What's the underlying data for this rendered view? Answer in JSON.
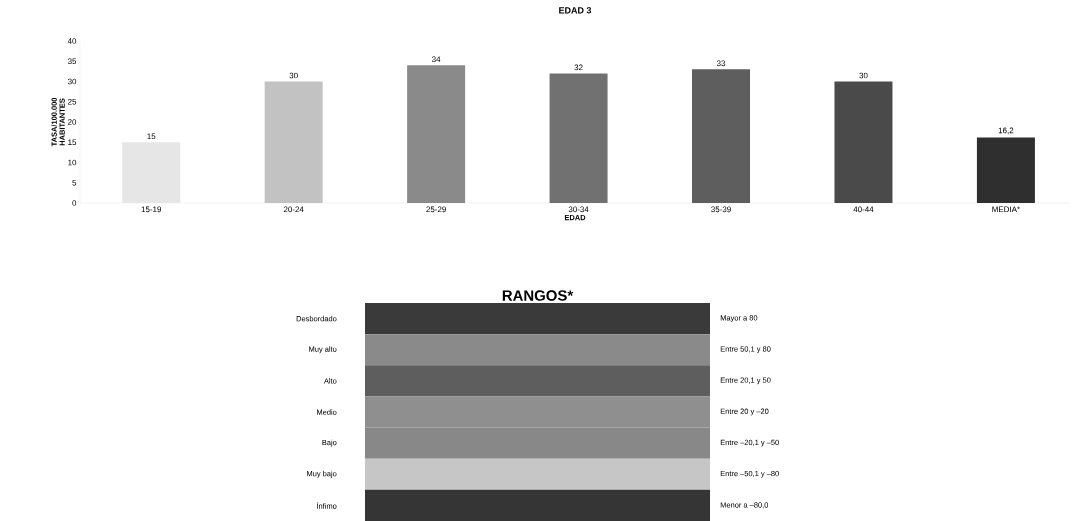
{
  "chart_data": [
    {
      "type": "bar",
      "title": "EDAD 3",
      "xlabel": "EDAD",
      "ylabel": "TASA/100.000 HABITANTES",
      "categories": [
        "15-19",
        "20-24",
        "25-29",
        "30-34",
        "35-39",
        "40-44",
        "MEDIA*"
      ],
      "values": [
        15,
        30,
        34,
        32,
        33,
        30,
        16.2
      ],
      "value_labels": [
        "15",
        "30",
        "34",
        "32",
        "33",
        "30",
        "16,2"
      ],
      "colors": [
        "#e6e6e6",
        "#c2c2c2",
        "#8a8a8a",
        "#717171",
        "#5e5e5e",
        "#4a4a4a",
        "#2f2f2f"
      ],
      "ylim": [
        0,
        40
      ],
      "yticks": [
        0,
        5,
        10,
        15,
        20,
        25,
        30,
        35,
        40
      ],
      "grid": false
    },
    {
      "type": "other",
      "title": "RANGOS*",
      "categories": [
        "Desbordado",
        "Muy alto",
        "Alto",
        "Medio",
        "Bajo",
        "Muy bajo",
        "Ínfimo"
      ],
      "colors": [
        "#3a3a3a",
        "#8a8a8a",
        "#5e5e5e",
        "#8f8f8f",
        "#888888",
        "#c6c6c6",
        "#353535"
      ],
      "annotations": [
        "Mayor a 80",
        "Entre 50,1 y 80",
        "Entre 20,1 y 50",
        "Entre 20 y –20",
        "Entre –20,1 y –50",
        "Entre –50,1 y –80",
        "Menor a –80,0"
      ]
    }
  ]
}
